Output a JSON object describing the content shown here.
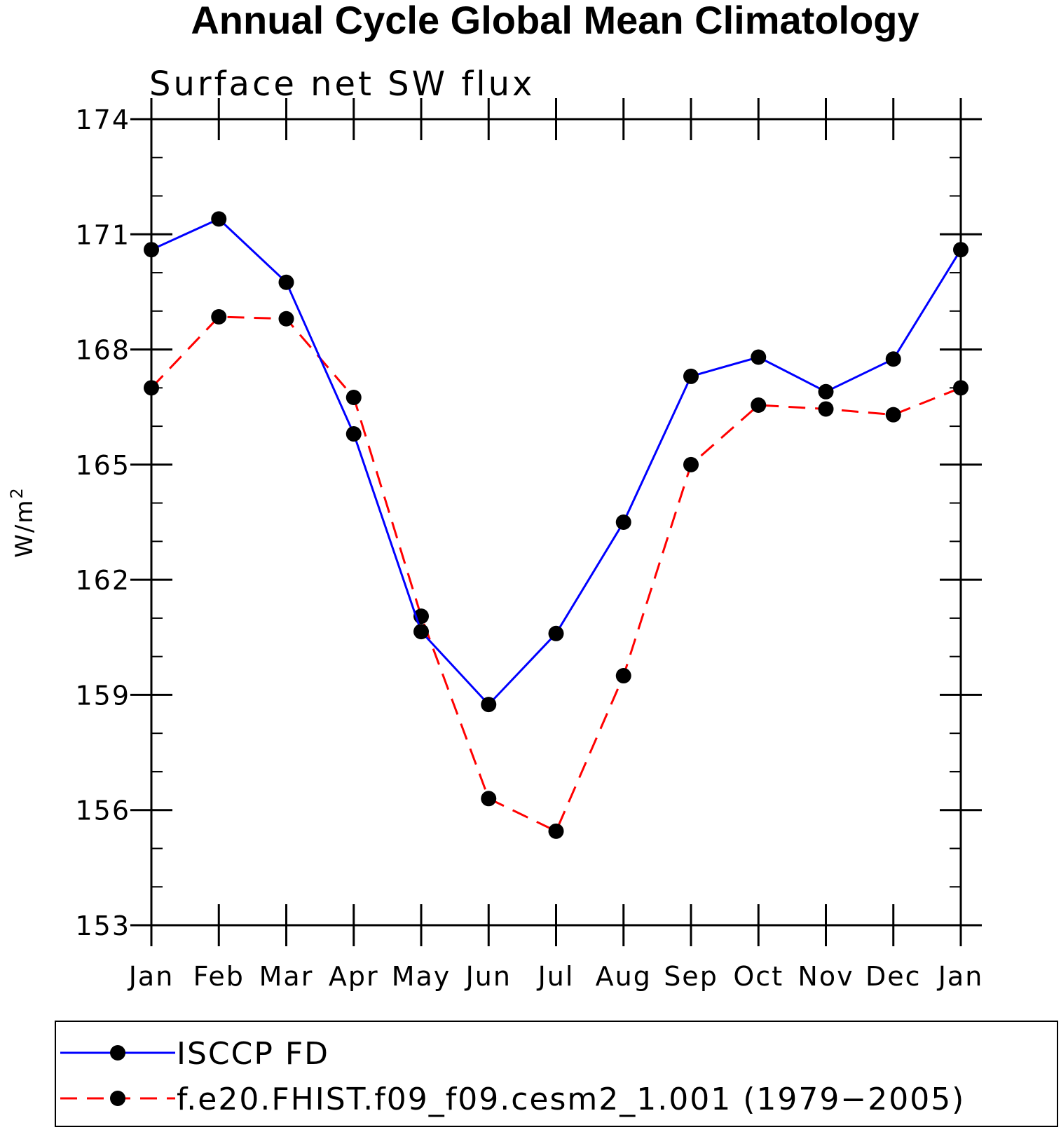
{
  "chart_data": {
    "type": "line",
    "title": "Annual Cycle Global Mean Climatology",
    "subtitle": "Surface net SW flux",
    "xlabel": "",
    "ylabel": "W/m",
    "ylabel_superscript": "2",
    "categories": [
      "Jan",
      "Feb",
      "Mar",
      "Apr",
      "May",
      "Jun",
      "Jul",
      "Aug",
      "Sep",
      "Oct",
      "Nov",
      "Dec",
      "Jan"
    ],
    "ylim": [
      153,
      174
    ],
    "yticks": [
      153,
      156,
      159,
      162,
      165,
      168,
      171,
      174
    ],
    "yminor_step": 1,
    "grid": false,
    "legend_position": "bottom",
    "series": [
      {
        "name": "ISCCP FD",
        "color": "#0000ff",
        "line_style": "solid",
        "marker": "filled-circle",
        "values": [
          170.6,
          171.4,
          169.75,
          165.8,
          160.65,
          158.75,
          160.6,
          163.5,
          167.3,
          167.8,
          166.9,
          167.75,
          170.6
        ]
      },
      {
        "name": "f.e20.FHIST.f09_f09.cesm2_1.001 (1979-2005)",
        "color": "#ff0000",
        "line_style": "dashed",
        "marker": "filled-circle",
        "values": [
          167.0,
          168.85,
          168.8,
          166.75,
          161.05,
          156.3,
          155.45,
          159.5,
          165.0,
          166.55,
          166.45,
          166.3,
          167.0
        ]
      }
    ],
    "legend_labels": [
      "ISCCP FD",
      "f.e20.FHIST.f09_f09.cesm2_1.001 (1979−2005)"
    ]
  }
}
